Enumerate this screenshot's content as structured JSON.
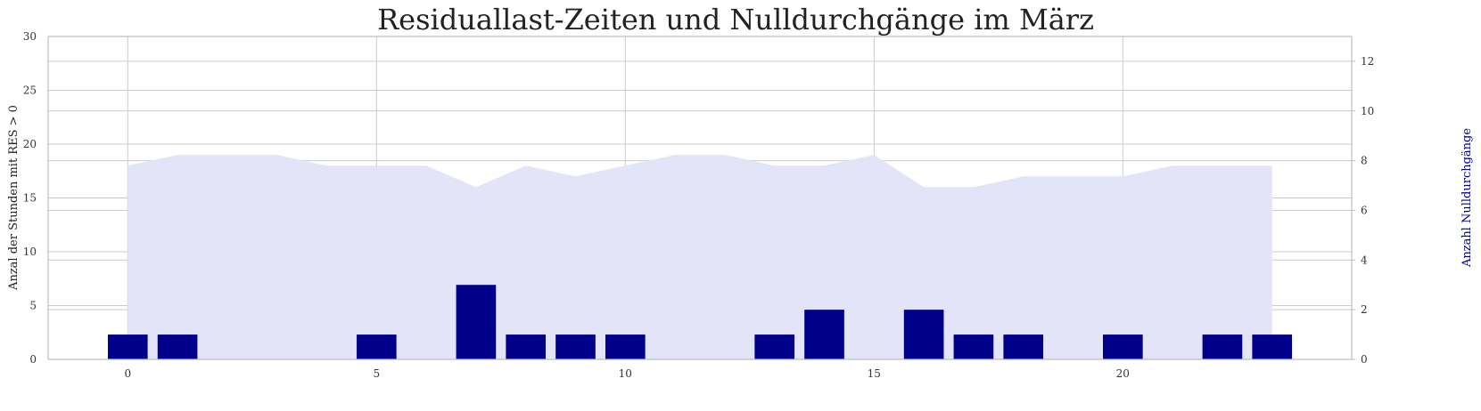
{
  "chart_data": {
    "type": "bar",
    "title": "Residuallast-Zeiten und Nulldurchgänge im März",
    "xlabel": "",
    "ylabel": "Anzal der Stunden mit RES > 0",
    "ylabel_right": "Anzahl Nulldurchgänge",
    "xlim": [
      -1.6,
      24.6
    ],
    "x_ticks": [
      0,
      5,
      10,
      15,
      20
    ],
    "ylim": [
      0,
      30
    ],
    "y_ticks": [
      0,
      5,
      10,
      15,
      20,
      25,
      30
    ],
    "ylim_right": [
      0,
      13
    ],
    "y_ticks_right": [
      0,
      2,
      4,
      6,
      8,
      10,
      12
    ],
    "grid": true,
    "series": [
      {
        "axis": "left",
        "type": "area",
        "x": [
          0,
          1,
          2,
          3,
          4,
          5,
          6,
          7,
          8,
          9,
          10,
          11,
          12,
          13,
          14,
          15,
          16,
          17,
          18,
          19,
          20,
          21,
          22,
          23
        ],
        "values": [
          18,
          19,
          19,
          19,
          18,
          18,
          18,
          16,
          18,
          17,
          18,
          19,
          19,
          18,
          18,
          19,
          16,
          16,
          17,
          17,
          17,
          18,
          18,
          18
        ],
        "color": "#e4e4f8"
      },
      {
        "axis": "right",
        "type": "bar",
        "x": [
          0,
          1,
          2,
          3,
          4,
          5,
          6,
          7,
          8,
          9,
          10,
          11,
          12,
          13,
          14,
          15,
          16,
          17,
          18,
          19,
          20,
          21,
          22,
          23
        ],
        "values": [
          1,
          1,
          0,
          0,
          0,
          1,
          0,
          3,
          1,
          1,
          1,
          0,
          0,
          1,
          2,
          0,
          2,
          1,
          1,
          0,
          1,
          0,
          1,
          1
        ],
        "color": "#00008b"
      }
    ],
    "colors": {
      "grid": "#cccccc",
      "axis": "#bdbdbd",
      "right_label": "#00008b"
    }
  }
}
